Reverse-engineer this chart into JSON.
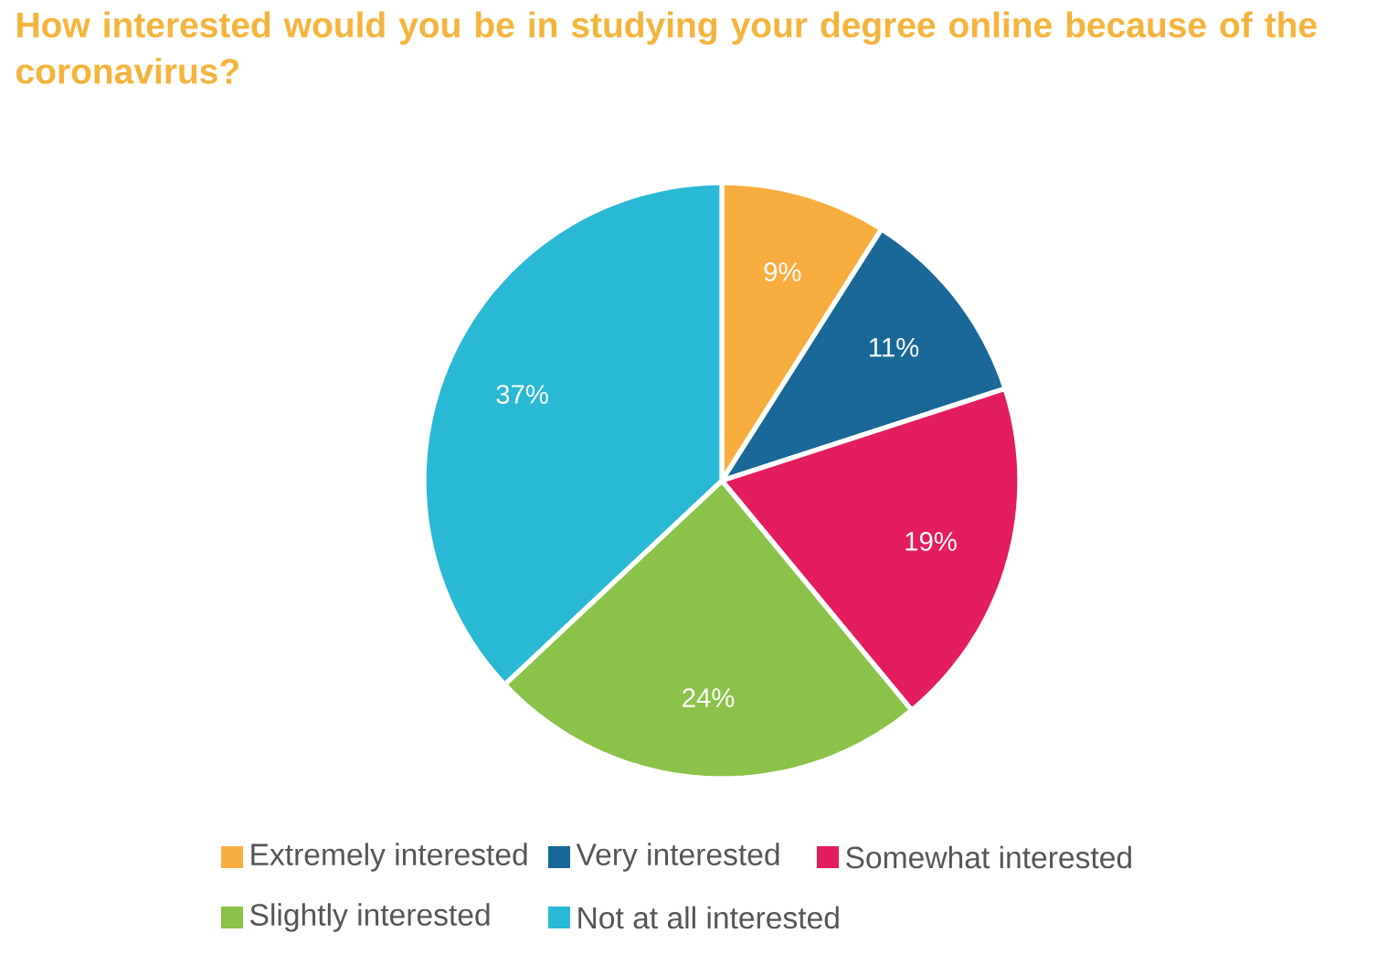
{
  "chart_data": {
    "type": "pie",
    "title": "How interested would you be in studying your degree online because of the coronavirus?",
    "categories": [
      "Extremely interested",
      "Very interested",
      "Somewhat interested",
      "Slightly interested",
      "Not at all interested"
    ],
    "values": [
      9,
      11,
      19,
      24,
      37
    ],
    "value_labels": [
      "9%",
      "11%",
      "19%",
      "24%",
      "37%"
    ],
    "colors": [
      "#f8ae3e",
      "#1a6897",
      "#e41d5e",
      "#8bc34a",
      "#2ab9d4"
    ],
    "legend": "bottom"
  }
}
